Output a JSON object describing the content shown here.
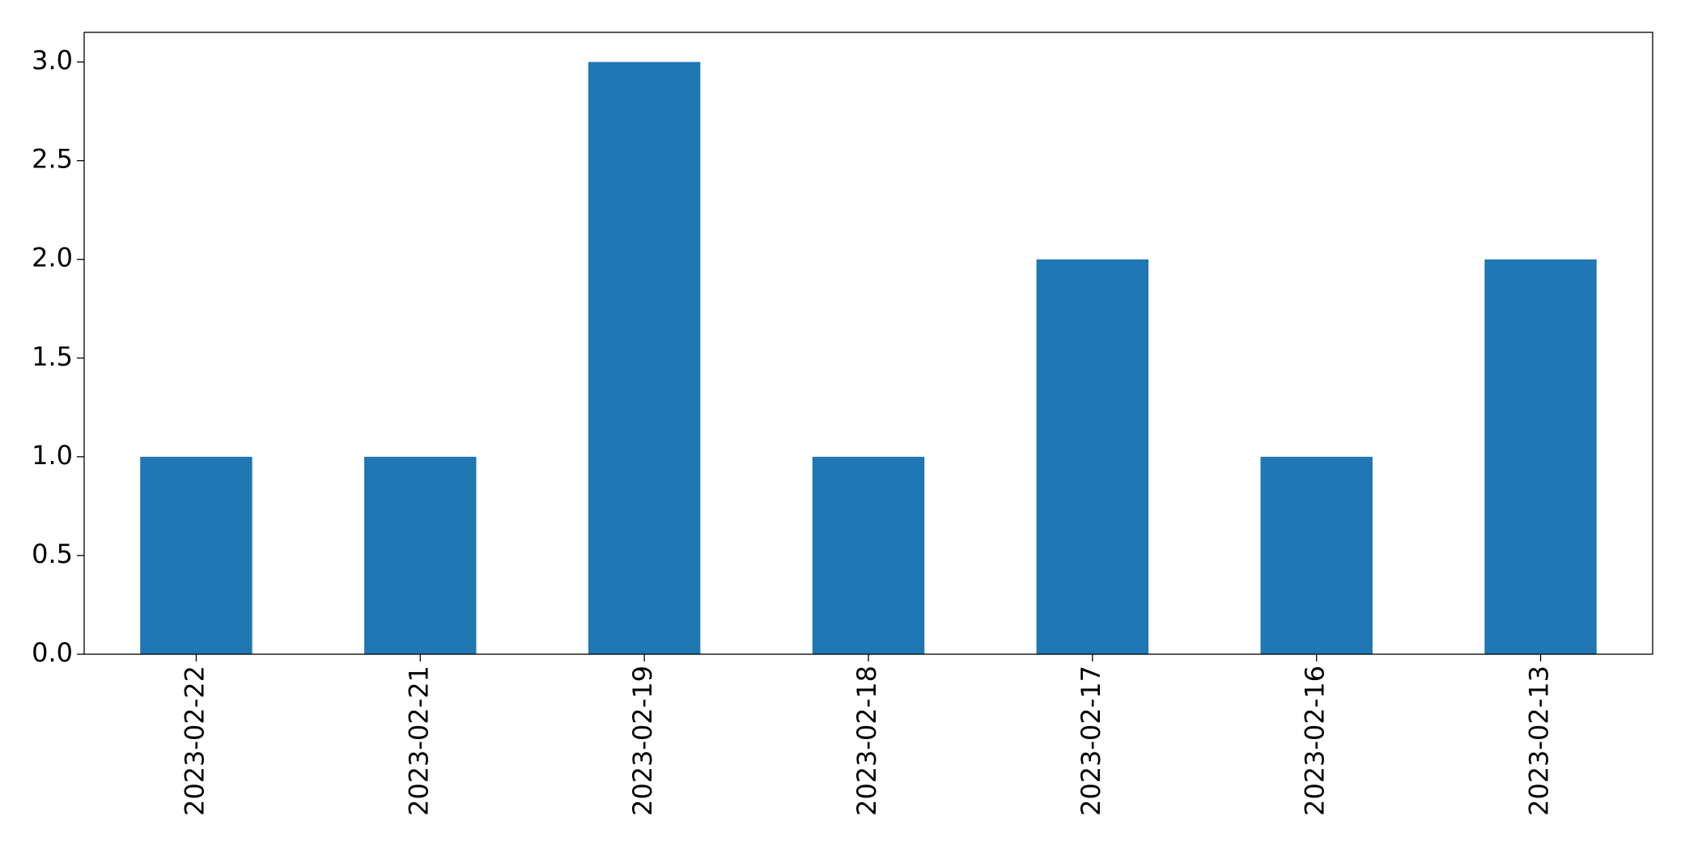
{
  "chart_data": {
    "type": "bar",
    "categories": [
      "2023-02-22",
      "2023-02-21",
      "2023-02-19",
      "2023-02-18",
      "2023-02-17",
      "2023-02-16",
      "2023-02-13"
    ],
    "values": [
      1,
      1,
      3,
      1,
      2,
      1,
      2
    ],
    "color": "#1f77b4",
    "ylim": [
      0,
      3.15
    ],
    "yticks": [
      {
        "value": 0,
        "label": "0.0"
      },
      0.5,
      {
        "value": 1,
        "label": "1.0"
      },
      1.5,
      {
        "value": 2,
        "label": "2.0"
      },
      2.5,
      {
        "value": 3,
        "label": "3.0"
      }
    ],
    "grid": false
  }
}
